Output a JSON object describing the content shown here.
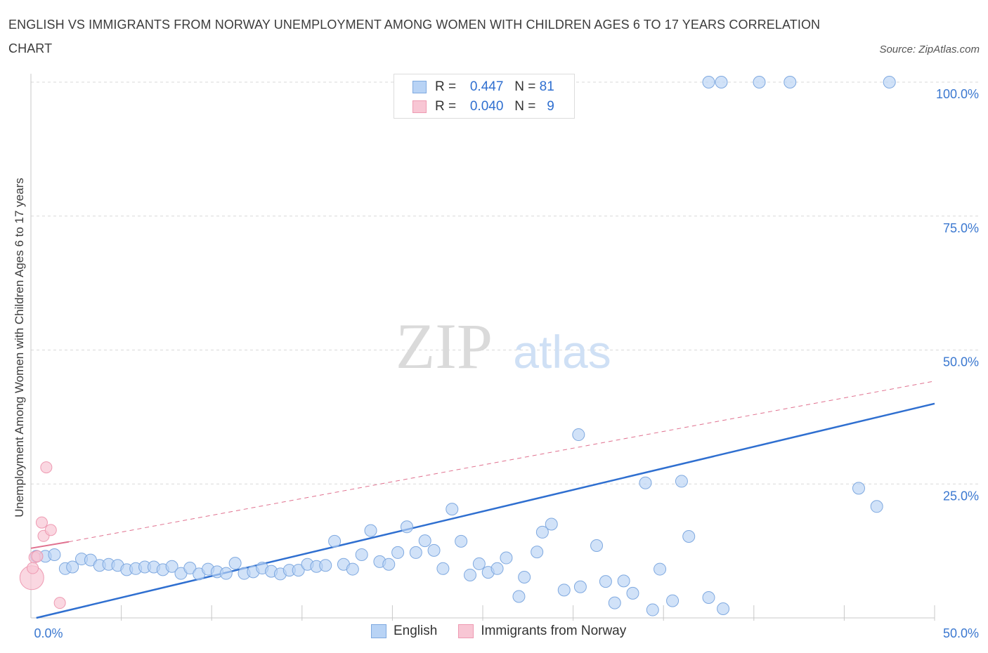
{
  "title": "ENGLISH VS IMMIGRANTS FROM NORWAY UNEMPLOYMENT AMONG WOMEN WITH CHILDREN AGES 6 TO 17 YEARS CORRELATION CHART",
  "source": "Source: ZipAtlas.com",
  "watermark": {
    "zip": "ZIP",
    "atlas": "atlas"
  },
  "legend": {
    "english": {
      "r_label": "R =",
      "r_value": "0.447",
      "n_label": "N =",
      "n_value": "81"
    },
    "norway": {
      "r_label": "R =",
      "r_value": "0.040",
      "n_label": "N =",
      "n_value": "9"
    }
  },
  "bottom_legend": {
    "english": "English",
    "norway": "Immigrants from Norway"
  },
  "colors": {
    "english_fill": "#b8d3f5",
    "english_stroke": "#7fa9e0",
    "english_line": "#2f6fd0",
    "norway_fill": "#f8c6d4",
    "norway_stroke": "#ee9ab2",
    "norway_line": "#e0718f",
    "axis_text": "#3b78d0"
  },
  "chart_data": {
    "type": "scatter",
    "title": "ENGLISH VS IMMIGRANTS FROM NORWAY UNEMPLOYMENT AMONG WOMEN WITH CHILDREN AGES 6 TO 17 YEARS CORRELATION CHART",
    "xlabel": "",
    "ylabel": "Unemployment Among Women with Children Ages 6 to 17 years",
    "xlim": [
      0,
      50
    ],
    "ylim": [
      0,
      100
    ],
    "x_tick_labels": [
      {
        "value": 0,
        "label": "0.0%"
      },
      {
        "value": 50,
        "label": "50.0%"
      }
    ],
    "y_tick_labels": [
      {
        "value": 100,
        "label": "100.0%"
      },
      {
        "value": 75,
        "label": "75.0%"
      },
      {
        "value": 50,
        "label": "50.0%"
      },
      {
        "value": 25,
        "label": "25.0%"
      }
    ],
    "grid": true,
    "series": [
      {
        "name": "English",
        "R": 0.447,
        "N": 81,
        "points": [
          [
            0.3,
            11.5
          ],
          [
            0.8,
            11.5
          ],
          [
            1.3,
            11.8
          ],
          [
            1.9,
            9.2
          ],
          [
            2.3,
            9.5
          ],
          [
            2.8,
            11.0
          ],
          [
            3.3,
            10.8
          ],
          [
            3.8,
            9.8
          ],
          [
            4.3,
            10.0
          ],
          [
            4.8,
            9.8
          ],
          [
            5.3,
            9.0
          ],
          [
            5.8,
            9.2
          ],
          [
            6.3,
            9.5
          ],
          [
            6.8,
            9.5
          ],
          [
            7.3,
            9.0
          ],
          [
            7.8,
            9.6
          ],
          [
            8.3,
            8.3
          ],
          [
            8.8,
            9.3
          ],
          [
            9.3,
            8.2
          ],
          [
            9.8,
            9.1
          ],
          [
            10.3,
            8.6
          ],
          [
            10.8,
            8.3
          ],
          [
            11.3,
            10.2
          ],
          [
            11.8,
            8.3
          ],
          [
            12.3,
            8.6
          ],
          [
            12.8,
            9.3
          ],
          [
            13.3,
            8.7
          ],
          [
            13.8,
            8.2
          ],
          [
            14.3,
            8.9
          ],
          [
            14.8,
            8.9
          ],
          [
            15.3,
            10.0
          ],
          [
            15.8,
            9.6
          ],
          [
            16.3,
            9.8
          ],
          [
            16.8,
            14.3
          ],
          [
            17.3,
            10.0
          ],
          [
            17.8,
            9.1
          ],
          [
            18.3,
            11.8
          ],
          [
            18.8,
            16.3
          ],
          [
            19.3,
            10.5
          ],
          [
            19.8,
            10.0
          ],
          [
            20.3,
            12.2
          ],
          [
            20.8,
            17.0
          ],
          [
            21.3,
            12.2
          ],
          [
            21.8,
            14.4
          ],
          [
            22.3,
            12.6
          ],
          [
            22.8,
            9.2
          ],
          [
            23.3,
            20.3
          ],
          [
            23.8,
            14.3
          ],
          [
            24.3,
            8.0
          ],
          [
            24.8,
            10.1
          ],
          [
            25.3,
            8.5
          ],
          [
            25.8,
            9.2
          ],
          [
            26.3,
            11.2
          ],
          [
            27.0,
            4.0
          ],
          [
            27.3,
            7.6
          ],
          [
            28.0,
            12.3
          ],
          [
            28.3,
            16.0
          ],
          [
            28.8,
            17.5
          ],
          [
            29.5,
            5.2
          ],
          [
            30.3,
            34.2
          ],
          [
            30.4,
            5.8
          ],
          [
            31.3,
            13.5
          ],
          [
            31.8,
            6.8
          ],
          [
            32.3,
            2.8
          ],
          [
            32.8,
            6.9
          ],
          [
            33.3,
            4.6
          ],
          [
            34.0,
            25.2
          ],
          [
            34.4,
            1.5
          ],
          [
            34.8,
            9.1
          ],
          [
            35.5,
            3.2
          ],
          [
            36.0,
            25.5
          ],
          [
            36.4,
            15.2
          ],
          [
            37.5,
            100
          ],
          [
            38.2,
            100
          ],
          [
            40.3,
            100
          ],
          [
            42.0,
            100
          ],
          [
            37.5,
            3.8
          ],
          [
            38.3,
            1.7
          ],
          [
            45.8,
            24.2
          ],
          [
            46.8,
            20.8
          ],
          [
            47.5,
            100
          ]
        ],
        "trend": {
          "x": [
            0.3,
            50
          ],
          "y": [
            0,
            40
          ]
        }
      },
      {
        "name": "Immigrants from Norway",
        "R": 0.04,
        "N": 9,
        "points": [
          [
            0.05,
            7.5
          ],
          [
            0.1,
            9.3
          ],
          [
            0.2,
            11.3
          ],
          [
            0.35,
            11.5
          ],
          [
            0.6,
            17.8
          ],
          [
            0.7,
            15.3
          ],
          [
            0.85,
            28.1
          ],
          [
            1.1,
            16.4
          ],
          [
            1.6,
            2.8
          ]
        ],
        "trend_solid": {
          "x": [
            0,
            2.1
          ],
          "y": [
            13.0,
            14.2
          ]
        },
        "trend_dashed": {
          "x": [
            2.1,
            50
          ],
          "y": [
            14.2,
            44.2
          ]
        }
      }
    ]
  }
}
